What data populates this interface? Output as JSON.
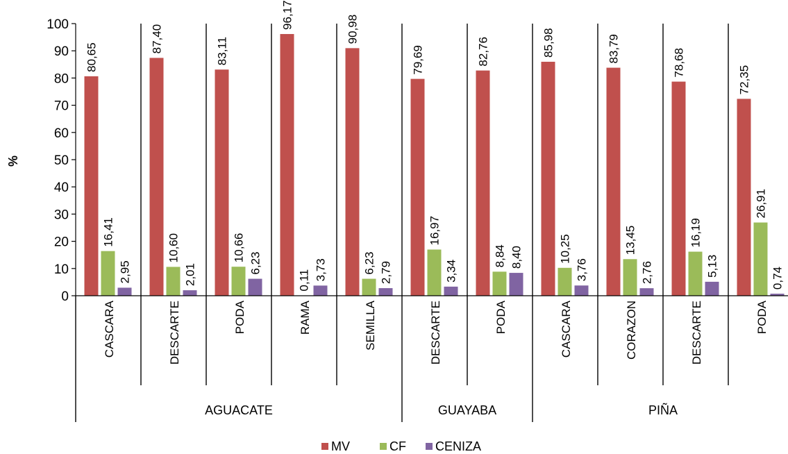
{
  "chart_data": {
    "type": "bar",
    "ylabel": "%",
    "ylim": [
      0,
      100
    ],
    "yticks": [
      0,
      10,
      20,
      30,
      40,
      50,
      60,
      70,
      80,
      90,
      100
    ],
    "grid": false,
    "legend_position": "bottom",
    "groups": [
      {
        "name": "AGUACATE",
        "categories": [
          "CASCARA",
          "DESCARTE",
          "PODA",
          "RAMA",
          "SEMILLA"
        ]
      },
      {
        "name": "GUAYABA",
        "categories": [
          "DESCARTE",
          "PODA"
        ]
      },
      {
        "name": "PIÑA",
        "categories": [
          "CASCARA",
          "CORAZON",
          "DESCARTE",
          "PODA"
        ]
      }
    ],
    "categories": [
      "CASCARA",
      "DESCARTE",
      "PODA",
      "RAMA",
      "SEMILLA",
      "DESCARTE",
      "PODA",
      "CASCARA",
      "CORAZON",
      "DESCARTE",
      "PODA"
    ],
    "series": [
      {
        "name": "MV",
        "color": "#c0504d",
        "values": [
          80.65,
          87.4,
          83.11,
          96.17,
          90.98,
          79.69,
          82.76,
          85.98,
          83.79,
          78.68,
          72.35
        ],
        "labels": [
          "80,65",
          "87,40",
          "83,11",
          "96,17",
          "90,98",
          "79,69",
          "82,76",
          "85,98",
          "83,79",
          "78,68",
          "72,35"
        ]
      },
      {
        "name": "CF",
        "color": "#9bbb59",
        "values": [
          16.41,
          10.6,
          10.66,
          0.11,
          6.23,
          16.97,
          8.84,
          10.25,
          13.45,
          16.19,
          26.91
        ],
        "labels": [
          "16,41",
          "10,60",
          "10,66",
          "0,11",
          "6,23",
          "16,97",
          "8,84",
          "10,25",
          "13,45",
          "16,19",
          "26,91"
        ]
      },
      {
        "name": "CENIZA",
        "color": "#8064a2",
        "values": [
          2.95,
          2.01,
          6.23,
          3.73,
          2.79,
          3.34,
          8.4,
          3.76,
          2.76,
          5.13,
          0.74
        ],
        "labels": [
          "2,95",
          "2,01",
          "6,23",
          "3,73",
          "2,79",
          "3,34",
          "8,40",
          "3,76",
          "2,76",
          "5,13",
          "0,74"
        ]
      }
    ]
  }
}
